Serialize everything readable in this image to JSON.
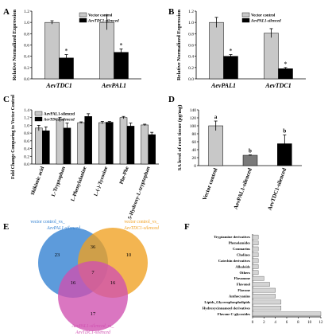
{
  "panels": {
    "A": {
      "letter": "A",
      "chart_data": {
        "type": "bar",
        "ylabel": "Relative Normalized Expression",
        "ylim": [
          0,
          1.2
        ],
        "yticks": [
          "0.0",
          "0.2",
          "0.4",
          "0.6",
          "0.8",
          "1.0",
          "1.2"
        ],
        "categories": [
          "AevTDC1",
          "AevPAL1"
        ],
        "series": [
          {
            "name": "Vector control",
            "color": "#c8c8c8",
            "values": [
              1.0,
              1.0
            ],
            "errors": [
              0.03,
              0.13
            ]
          },
          {
            "name": "AevTDC1-silenced",
            "color": "#000000",
            "values": [
              0.37,
              0.47
            ],
            "errors": [
              0.06,
              0.06
            ]
          }
        ],
        "annotations": [
          "*",
          "*"
        ],
        "legend": "top-right"
      }
    },
    "B": {
      "letter": "B",
      "chart_data": {
        "type": "bar",
        "ylabel": "Relative Normalized Expression",
        "ylim": [
          0,
          1.2
        ],
        "yticks": [
          "0.0",
          "0.2",
          "0.4",
          "0.6",
          "0.8",
          "1.0",
          "1.2"
        ],
        "categories": [
          "AevPAL1",
          "AevTDC1"
        ],
        "series": [
          {
            "name": "Vector control",
            "color": "#c8c8c8",
            "values": [
              1.0,
              0.81
            ],
            "errors": [
              0.09,
              0.08
            ]
          },
          {
            "name": "AevPAL1-silenced",
            "color": "#000000",
            "values": [
              0.4,
              0.18
            ],
            "errors": [
              0.03,
              0.02
            ]
          }
        ],
        "annotations": [
          "*",
          "*"
        ],
        "legend": "top-right"
      }
    },
    "C": {
      "letter": "C",
      "chart_data": {
        "type": "bar",
        "ylabel": "Fold Change Comparing to Vector Control",
        "ylim": [
          0.0,
          1.4
        ],
        "yticks": [
          "0.0",
          "0.2",
          "0.4",
          "0.6",
          "0.8",
          "1.0",
          "1.2",
          "1.4"
        ],
        "categories": [
          "Shikimic acid",
          "L-Tryptophan",
          "L-Phenylalanine",
          "L-(-)-Tyrosine",
          "Phe-Phe",
          "5-Hydroxy-L-tryptophan"
        ],
        "series": [
          {
            "name": "AevPAL1-silenced",
            "color": "#c8c8c8",
            "values": [
              0.93,
              1.15,
              1.07,
              1.07,
              1.2,
              1.01
            ],
            "errors": [
              0.07,
              0.05,
              0.02,
              0.03,
              0.03,
              0.02
            ]
          },
          {
            "name": "AevTDC1-silenced",
            "color": "#000000",
            "values": [
              0.86,
              0.93,
              1.23,
              1.08,
              0.98,
              0.76
            ],
            "errors": [
              0.1,
              0.13,
              0.07,
              0.02,
              0.08,
              0.06
            ]
          }
        ],
        "legend": "top-left"
      }
    },
    "D": {
      "letter": "D",
      "chart_data": {
        "type": "bar",
        "ylabel": "SA level of root tissue (pg/mg)",
        "ylim": [
          0,
          140
        ],
        "yticks": [
          "0",
          "20",
          "40",
          "60",
          "80",
          "100",
          "120",
          "140"
        ],
        "categories": [
          "Vector control",
          "AevPAL1-silenced",
          "AevTDC1-silenced"
        ],
        "values": [
          100,
          26,
          55
        ],
        "errors": [
          12,
          1,
          22
        ],
        "colors": [
          "#c8c8c8",
          "#7a7a7a",
          "#000000"
        ],
        "annotations": [
          "a",
          "b",
          "b"
        ]
      }
    },
    "E": {
      "letter": "E",
      "sets": [
        {
          "label": "vector control_vs_AevPAL1-silenced",
          "label_line1": "vector control_vs_",
          "label_line2": "AevPAL1-silenced",
          "color": "#2f7fd1",
          "size_only": 23
        },
        {
          "label": "vector control_vs_AevTDC1-silenced",
          "label_line1": "vector control_vs_",
          "label_line2": "AevTDC1-silenced",
          "color": "#f0a020",
          "size_only": 10
        },
        {
          "label": "AevPAL1-silenced_vs_AevTDC1-silenced",
          "label_line1": "AevPAL1-silenced_vs_",
          "label_line2": "AevTDC1-silenced",
          "color": "#d04fb0",
          "size_only": 17
        }
      ],
      "intersections": {
        "ab": 36,
        "ac": 16,
        "bc": 16,
        "abc": 7
      }
    },
    "F": {
      "letter": "F",
      "chart_data": {
        "type": "bar",
        "orientation": "horizontal",
        "xlim": [
          0,
          12
        ],
        "xticks": [
          "0",
          "2",
          "4",
          "6",
          "8",
          "10",
          "12"
        ],
        "categories": [
          "Tryptamine derivatives",
          "Phenolamides",
          "Coumarins",
          "Cholines",
          "Catechin derivatives",
          "Alkaloids",
          "Others",
          "Flavanone",
          "Flavonol",
          "Flavone",
          "Anthocyanins",
          "Lipids_Glycerophospholipids",
          "Hydroxycinnamoyl derivatives",
          "Flavone C-glycosides"
        ],
        "values": [
          1,
          1,
          1,
          1,
          1,
          1,
          1,
          2,
          3,
          4,
          4,
          5,
          5,
          12
        ],
        "color": "#d4d4d4"
      }
    }
  }
}
